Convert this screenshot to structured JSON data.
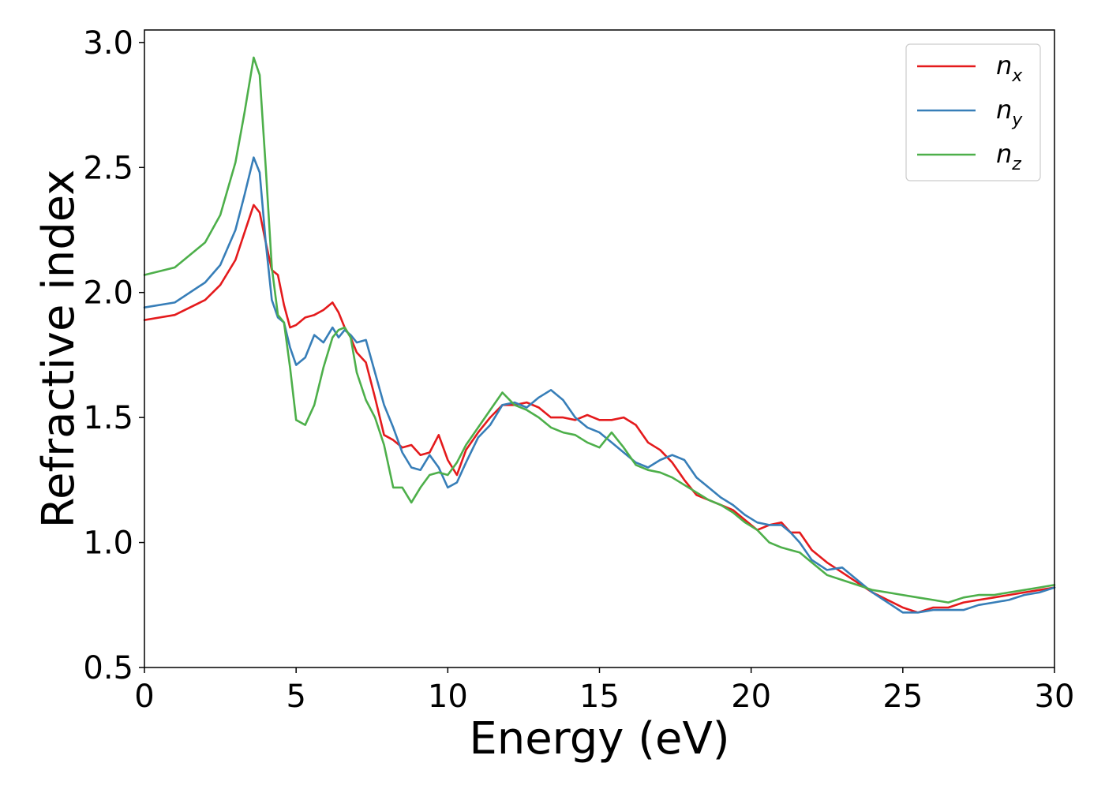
{
  "chart_data": {
    "type": "line",
    "title": "",
    "xlabel": "Energy (eV)",
    "ylabel": "Refractive index",
    "xlim": [
      0,
      30
    ],
    "ylim": [
      0.5,
      3.05
    ],
    "xticks": [
      0,
      5,
      10,
      15,
      20,
      25,
      30
    ],
    "xtick_labels": [
      "0",
      "5",
      "10",
      "15",
      "20",
      "25",
      "30"
    ],
    "yticks": [
      0.5,
      1.0,
      1.5,
      2.0,
      2.5,
      3.0
    ],
    "ytick_labels": [
      "0.5",
      "1.0",
      "1.5",
      "2.0",
      "2.5",
      "3.0"
    ],
    "grid": false,
    "legend_position": "top-right",
    "series": [
      {
        "name": "n_x",
        "legend_main": "n",
        "legend_sub": "x",
        "color": "#e41a1c",
        "x": [
          0,
          1,
          2,
          2.5,
          3,
          3.3,
          3.6,
          3.8,
          4.0,
          4.2,
          4.4,
          4.6,
          4.8,
          5.0,
          5.3,
          5.6,
          5.9,
          6.2,
          6.4,
          6.6,
          6.8,
          7.0,
          7.3,
          7.6,
          7.9,
          8.2,
          8.5,
          8.8,
          9.1,
          9.4,
          9.7,
          10.0,
          10.3,
          10.6,
          11.0,
          11.4,
          11.8,
          12.2,
          12.6,
          13.0,
          13.4,
          13.8,
          14.2,
          14.6,
          15.0,
          15.4,
          15.8,
          16.2,
          16.6,
          17.0,
          17.4,
          17.8,
          18.2,
          18.6,
          19.0,
          19.4,
          19.8,
          20.2,
          20.6,
          21.0,
          21.3,
          21.6,
          22.0,
          22.5,
          23.0,
          23.5,
          24.0,
          24.5,
          25.0,
          25.5,
          26.0,
          26.5,
          27.0,
          27.5,
          28.0,
          28.5,
          29.0,
          29.5,
          30.0
        ],
        "y": [
          1.89,
          1.91,
          1.97,
          2.03,
          2.13,
          2.24,
          2.35,
          2.32,
          2.2,
          2.09,
          2.07,
          1.95,
          1.86,
          1.87,
          1.9,
          1.91,
          1.93,
          1.96,
          1.92,
          1.86,
          1.82,
          1.76,
          1.72,
          1.58,
          1.43,
          1.41,
          1.38,
          1.39,
          1.35,
          1.36,
          1.43,
          1.33,
          1.27,
          1.37,
          1.44,
          1.5,
          1.55,
          1.55,
          1.56,
          1.54,
          1.5,
          1.5,
          1.49,
          1.51,
          1.49,
          1.49,
          1.5,
          1.47,
          1.4,
          1.37,
          1.32,
          1.25,
          1.19,
          1.17,
          1.15,
          1.13,
          1.09,
          1.05,
          1.07,
          1.08,
          1.04,
          1.04,
          0.97,
          0.92,
          0.88,
          0.84,
          0.8,
          0.77,
          0.74,
          0.72,
          0.74,
          0.74,
          0.76,
          0.77,
          0.78,
          0.79,
          0.8,
          0.81,
          0.82
        ]
      },
      {
        "name": "n_y",
        "legend_main": "n",
        "legend_sub": "y",
        "color": "#377eb8",
        "x": [
          0,
          1,
          2,
          2.5,
          3,
          3.3,
          3.6,
          3.8,
          4.0,
          4.2,
          4.4,
          4.6,
          4.8,
          5.0,
          5.3,
          5.6,
          5.9,
          6.2,
          6.4,
          6.6,
          6.8,
          7.0,
          7.3,
          7.6,
          7.9,
          8.2,
          8.5,
          8.8,
          9.1,
          9.4,
          9.7,
          10.0,
          10.3,
          10.6,
          11.0,
          11.4,
          11.8,
          12.2,
          12.6,
          13.0,
          13.4,
          13.8,
          14.2,
          14.6,
          15.0,
          15.4,
          15.8,
          16.2,
          16.6,
          17.0,
          17.4,
          17.8,
          18.2,
          18.6,
          19.0,
          19.4,
          19.8,
          20.2,
          20.6,
          21.0,
          21.3,
          21.6,
          22.0,
          22.5,
          23.0,
          23.5,
          24.0,
          24.5,
          25.0,
          25.5,
          26.0,
          26.5,
          27.0,
          27.5,
          28.0,
          28.5,
          29.0,
          29.5,
          30.0
        ],
        "y": [
          1.94,
          1.96,
          2.04,
          2.11,
          2.25,
          2.39,
          2.54,
          2.48,
          2.2,
          1.97,
          1.9,
          1.88,
          1.78,
          1.71,
          1.74,
          1.83,
          1.8,
          1.86,
          1.82,
          1.85,
          1.83,
          1.8,
          1.81,
          1.68,
          1.55,
          1.46,
          1.36,
          1.3,
          1.29,
          1.35,
          1.3,
          1.22,
          1.24,
          1.32,
          1.42,
          1.47,
          1.55,
          1.56,
          1.54,
          1.58,
          1.61,
          1.57,
          1.5,
          1.46,
          1.44,
          1.4,
          1.36,
          1.32,
          1.3,
          1.33,
          1.35,
          1.33,
          1.26,
          1.22,
          1.18,
          1.15,
          1.11,
          1.08,
          1.07,
          1.07,
          1.04,
          1.0,
          0.93,
          0.89,
          0.9,
          0.85,
          0.8,
          0.76,
          0.72,
          0.72,
          0.73,
          0.73,
          0.73,
          0.75,
          0.76,
          0.77,
          0.79,
          0.8,
          0.82
        ]
      },
      {
        "name": "n_z",
        "legend_main": "n",
        "legend_sub": "z",
        "color": "#4daf4a",
        "x": [
          0,
          1,
          2,
          2.5,
          3,
          3.3,
          3.6,
          3.8,
          4.0,
          4.2,
          4.4,
          4.6,
          4.8,
          5.0,
          5.3,
          5.6,
          5.9,
          6.2,
          6.4,
          6.6,
          6.8,
          7.0,
          7.3,
          7.6,
          7.9,
          8.2,
          8.5,
          8.8,
          9.1,
          9.4,
          9.7,
          10.0,
          10.3,
          10.6,
          11.0,
          11.4,
          11.8,
          12.2,
          12.6,
          13.0,
          13.4,
          13.8,
          14.2,
          14.6,
          15.0,
          15.4,
          15.8,
          16.2,
          16.6,
          17.0,
          17.4,
          17.8,
          18.2,
          18.6,
          19.0,
          19.4,
          19.8,
          20.2,
          20.6,
          21.0,
          21.3,
          21.6,
          22.0,
          22.5,
          23.0,
          23.5,
          24.0,
          24.5,
          25.0,
          25.5,
          26.0,
          26.5,
          27.0,
          27.5,
          28.0,
          28.5,
          29.0,
          29.5,
          30.0
        ],
        "y": [
          2.07,
          2.1,
          2.2,
          2.31,
          2.52,
          2.72,
          2.94,
          2.87,
          2.5,
          2.1,
          1.91,
          1.88,
          1.7,
          1.49,
          1.47,
          1.55,
          1.7,
          1.82,
          1.85,
          1.86,
          1.82,
          1.68,
          1.57,
          1.5,
          1.39,
          1.22,
          1.22,
          1.16,
          1.22,
          1.27,
          1.28,
          1.27,
          1.32,
          1.39,
          1.46,
          1.53,
          1.6,
          1.55,
          1.53,
          1.5,
          1.46,
          1.44,
          1.43,
          1.4,
          1.38,
          1.44,
          1.38,
          1.31,
          1.29,
          1.28,
          1.26,
          1.23,
          1.2,
          1.17,
          1.15,
          1.12,
          1.08,
          1.05,
          1.0,
          0.98,
          0.97,
          0.96,
          0.92,
          0.87,
          0.85,
          0.83,
          0.81,
          0.8,
          0.79,
          0.78,
          0.77,
          0.76,
          0.78,
          0.79,
          0.79,
          0.8,
          0.81,
          0.82,
          0.83
        ]
      }
    ]
  }
}
